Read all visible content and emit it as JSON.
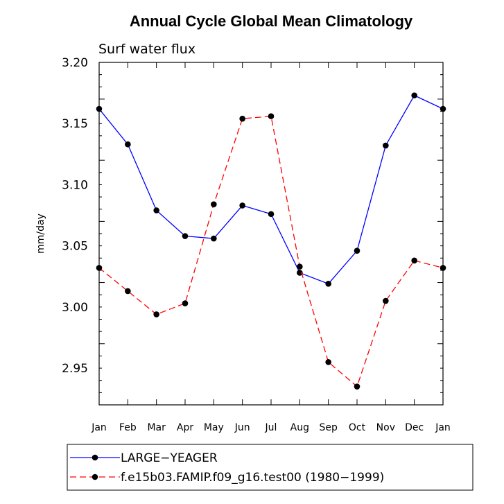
{
  "chart_data": {
    "type": "line",
    "title": "Annual Cycle Global Mean Climatology",
    "subtitle": "Surf water flux",
    "xlabel": "",
    "ylabel": "mm/day",
    "categories": [
      "Jan",
      "Feb",
      "Mar",
      "Apr",
      "May",
      "Jun",
      "Jul",
      "Aug",
      "Sep",
      "Oct",
      "Nov",
      "Dec",
      "Jan"
    ],
    "ylim": [
      2.92,
      3.2
    ],
    "yticks": [
      "3.20",
      "3.15",
      "3.10",
      "3.05",
      "3.00",
      "2.95"
    ],
    "series": [
      {
        "name": "LARGE−YEAGER",
        "color": "#0000ff",
        "dash": "solid",
        "values": [
          3.162,
          3.133,
          3.079,
          3.058,
          3.056,
          3.083,
          3.076,
          3.028,
          3.019,
          3.046,
          3.132,
          3.173,
          3.162
        ]
      },
      {
        "name": "f.e15b03.FAMIP.f09_g16.test00 (1980−1999)",
        "color": "#ff0000",
        "dash": "dashed",
        "values": [
          3.032,
          3.013,
          2.994,
          3.003,
          3.084,
          3.154,
          3.156,
          3.033,
          2.955,
          2.935,
          3.005,
          3.038,
          3.032
        ]
      }
    ],
    "legend_position": "bottom",
    "grid": false
  }
}
